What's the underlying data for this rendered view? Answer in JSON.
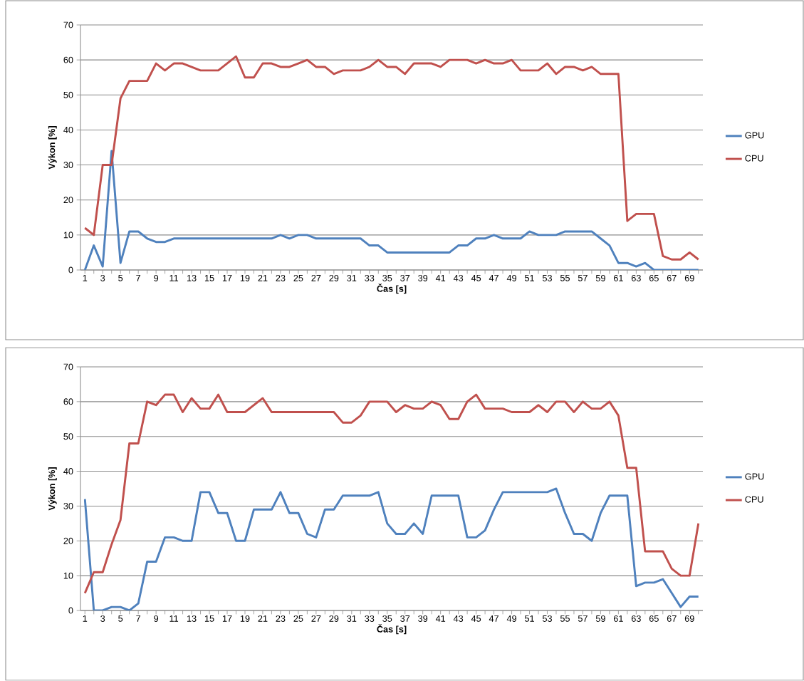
{
  "chart_data": [
    {
      "type": "line",
      "xlabel": "Čas [s]",
      "ylabel": "Výkon [%]",
      "categories": [
        "1",
        null,
        "3",
        null,
        "5",
        null,
        "7",
        null,
        "9",
        null,
        "11",
        null,
        "13",
        null,
        "15",
        null,
        "17",
        null,
        "19",
        null,
        "21",
        null,
        "23",
        null,
        "25",
        null,
        "27",
        null,
        "29",
        null,
        "31",
        null,
        "33",
        null,
        "35",
        null,
        "37",
        null,
        "39",
        null,
        "41",
        null,
        "43",
        null,
        "45",
        null,
        "47",
        null,
        "49",
        null,
        "51",
        null,
        "53",
        null,
        "55",
        null,
        "57",
        null,
        "59",
        null,
        "61",
        null,
        "63",
        null,
        "65",
        null,
        "67",
        null,
        "69",
        null
      ],
      "ylim": [
        0,
        70
      ],
      "yticks": [
        0,
        10,
        20,
        30,
        40,
        50,
        60,
        70
      ],
      "grid": "y",
      "legend": "right",
      "series": [
        {
          "name": "GPU",
          "color": "#4f81bd",
          "values": [
            0,
            7,
            1,
            34,
            2,
            11,
            11,
            9,
            8,
            8,
            9,
            9,
            9,
            9,
            9,
            9,
            9,
            9,
            9,
            9,
            9,
            9,
            10,
            9,
            10,
            10,
            9,
            9,
            9,
            9,
            9,
            9,
            7,
            7,
            5,
            5,
            5,
            5,
            5,
            5,
            5,
            5,
            7,
            7,
            9,
            9,
            10,
            9,
            9,
            9,
            11,
            10,
            10,
            10,
            11,
            11,
            11,
            11,
            9,
            7,
            2,
            2,
            1,
            2,
            0,
            0,
            0,
            0,
            0,
            0
          ]
        },
        {
          "name": "CPU",
          "color": "#c0504d",
          "values": [
            12,
            10,
            30,
            30,
            49,
            54,
            54,
            54,
            59,
            57,
            59,
            59,
            58,
            57,
            57,
            57,
            59,
            61,
            55,
            55,
            59,
            59,
            58,
            58,
            59,
            60,
            58,
            58,
            56,
            57,
            57,
            57,
            58,
            60,
            58,
            58,
            56,
            59,
            59,
            59,
            58,
            60,
            60,
            60,
            59,
            60,
            59,
            59,
            60,
            57,
            57,
            57,
            59,
            56,
            58,
            58,
            57,
            58,
            56,
            56,
            56,
            14,
            16,
            16,
            16,
            4,
            3,
            3,
            5,
            3
          ]
        }
      ]
    },
    {
      "type": "line",
      "xlabel": "Čas [s]",
      "ylabel": "Výkon [%]",
      "categories": [
        "1",
        null,
        "3",
        null,
        "5",
        null,
        "7",
        null,
        "9",
        null,
        "11",
        null,
        "13",
        null,
        "15",
        null,
        "17",
        null,
        "19",
        null,
        "21",
        null,
        "23",
        null,
        "25",
        null,
        "27",
        null,
        "29",
        null,
        "31",
        null,
        "33",
        null,
        "35",
        null,
        "37",
        null,
        "39",
        null,
        "41",
        null,
        "43",
        null,
        "45",
        null,
        "47",
        null,
        "49",
        null,
        "51",
        null,
        "53",
        null,
        "55",
        null,
        "57",
        null,
        "59",
        null,
        "61",
        null,
        "63",
        null,
        "65",
        null,
        "67",
        null,
        "69",
        null
      ],
      "ylim": [
        0,
        70
      ],
      "yticks": [
        0,
        10,
        20,
        30,
        40,
        50,
        60,
        70
      ],
      "grid": "y",
      "legend": "right",
      "series": [
        {
          "name": "GPU",
          "color": "#4f81bd",
          "values": [
            32,
            0,
            0,
            1,
            1,
            0,
            2,
            14,
            14,
            21,
            21,
            20,
            20,
            34,
            34,
            28,
            28,
            20,
            20,
            29,
            29,
            29,
            34,
            28,
            28,
            22,
            21,
            29,
            29,
            33,
            33,
            33,
            33,
            34,
            25,
            22,
            22,
            25,
            22,
            33,
            33,
            33,
            33,
            21,
            21,
            23,
            29,
            34,
            34,
            34,
            34,
            34,
            34,
            35,
            28,
            22,
            22,
            20,
            28,
            33,
            33,
            33,
            7,
            8,
            8,
            9,
            5,
            1,
            4,
            4
          ]
        },
        {
          "name": "CPU",
          "color": "#c0504d",
          "values": [
            5,
            11,
            11,
            19,
            26,
            48,
            48,
            60,
            59,
            62,
            62,
            57,
            61,
            58,
            58,
            62,
            57,
            57,
            57,
            59,
            61,
            57,
            57,
            57,
            57,
            57,
            57,
            57,
            57,
            54,
            54,
            56,
            60,
            60,
            60,
            57,
            59,
            58,
            58,
            60,
            59,
            55,
            55,
            60,
            62,
            58,
            58,
            58,
            57,
            57,
            57,
            59,
            57,
            60,
            60,
            57,
            60,
            58,
            58,
            60,
            56,
            41,
            41,
            17,
            17,
            17,
            12,
            10,
            10,
            25
          ]
        }
      ]
    }
  ]
}
